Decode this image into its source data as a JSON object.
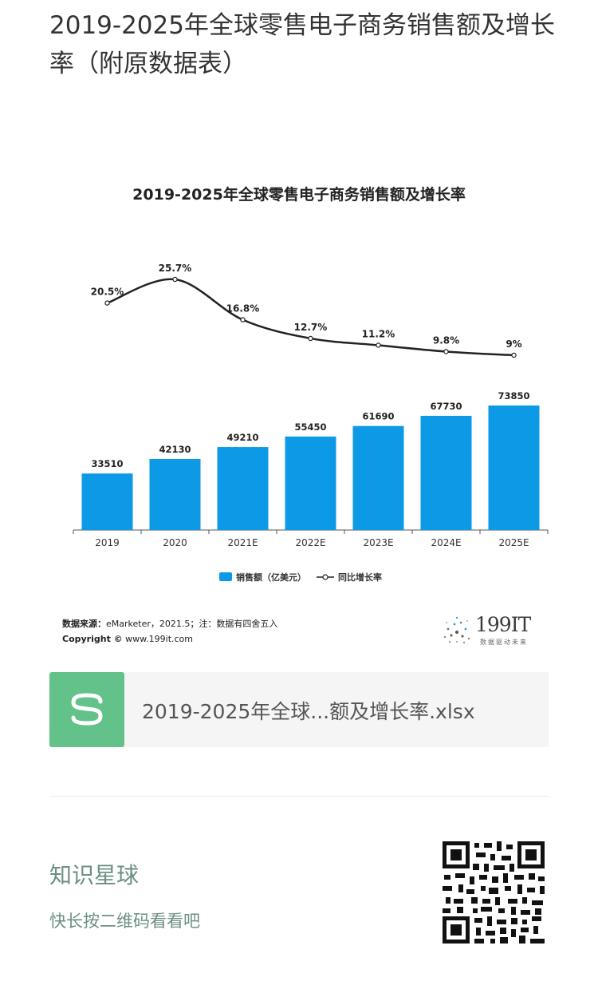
{
  "page": {
    "title": "2019-2025年全球零售电子商务销售额及增长率（附原数据表）"
  },
  "chart_data": {
    "type": "bar",
    "title": "2019-2025年全球零售电子商务销售额及增长率",
    "categories": [
      "2019",
      "2020",
      "2021E",
      "2022E",
      "2023E",
      "2024E",
      "2025E"
    ],
    "series": [
      {
        "name": "销售额（亿美元）",
        "type": "bar",
        "values": [
          33510,
          42130,
          49210,
          55450,
          61690,
          67730,
          73850
        ],
        "color": "#0c9ae6"
      },
      {
        "name": "同比增长率",
        "type": "line",
        "values": [
          20.5,
          25.7,
          16.8,
          12.7,
          11.2,
          9.8,
          9
        ],
        "labels": [
          "20.5%",
          "25.7%",
          "16.8%",
          "12.7%",
          "11.2%",
          "9.8%",
          "9%"
        ],
        "color": "#222222"
      }
    ],
    "legend_position": "bottom",
    "grid": false
  },
  "source": {
    "label": "数据来源：",
    "text": "eMarketer，2021.5；注：数据有四舍五入",
    "copyright_label": "Copyright ©",
    "copyright_text": "www.199it.com"
  },
  "brand": {
    "name": "199IT",
    "tagline": "数据驱动未来"
  },
  "attachment": {
    "file_name": "2019-2025年全球...额及增长率.xlsx"
  },
  "community": {
    "title": "知识星球",
    "subtitle": "快长按二维码看看吧"
  },
  "colors": {
    "accent_green": "#62c28a",
    "bar_blue": "#0c9ae6",
    "community_text": "#6c8f82"
  }
}
